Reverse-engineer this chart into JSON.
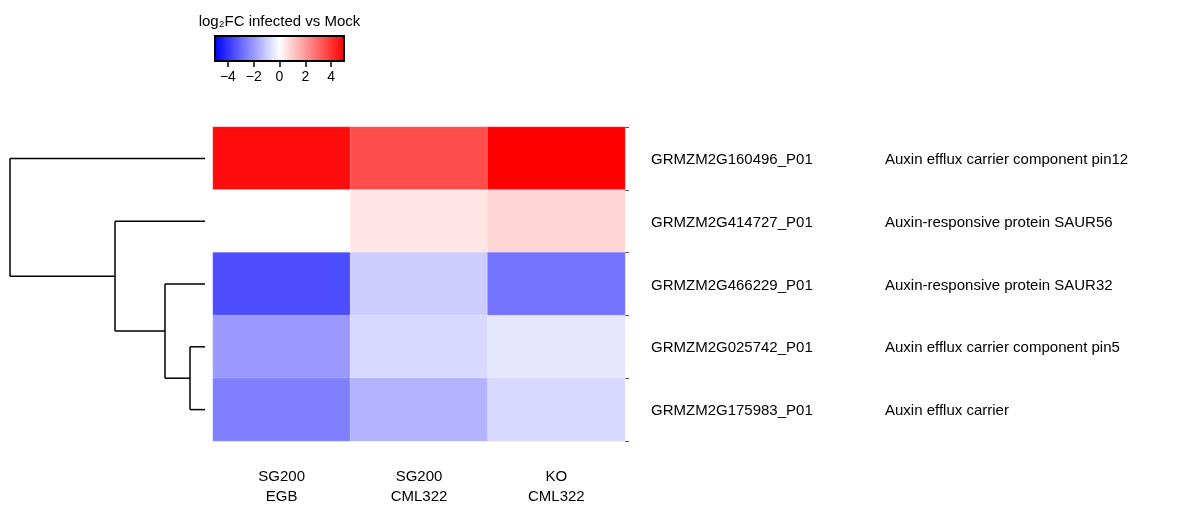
{
  "chart_data": {
    "type": "heatmap",
    "clabel": "log₂FC infected vs Mock",
    "categories": [
      "SG200\nEGB",
      "SG200\nCML322",
      "KO\nCML322"
    ],
    "y_categories": [
      "GRMZM2G160496_P01",
      "GRMZM2G414727_P01",
      "GRMZM2G466229_P01",
      "GRMZM2G025742_P01",
      "GRMZM2G175983_P01"
    ],
    "y2_categories": [
      "Auxin efflux carrier component pin12",
      "Auxin-responsive protein SAUR56",
      "Auxin-responsive protein SAUR32",
      "Auxin efflux carrier component pin5",
      "Auxin efflux carrier"
    ],
    "cells": [
      [
        4.75,
        3.5,
        5
      ],
      [
        0,
        0.5,
        0.8
      ],
      [
        -3.5,
        -1,
        -2.75
      ],
      [
        -2,
        -0.75,
        -0.5
      ],
      [
        -2.5,
        -1.5,
        -0.75
      ]
    ],
    "clim": [
      -5,
      5
    ],
    "cticks": [
      -4,
      -2,
      0,
      2,
      4
    ]
  }
}
